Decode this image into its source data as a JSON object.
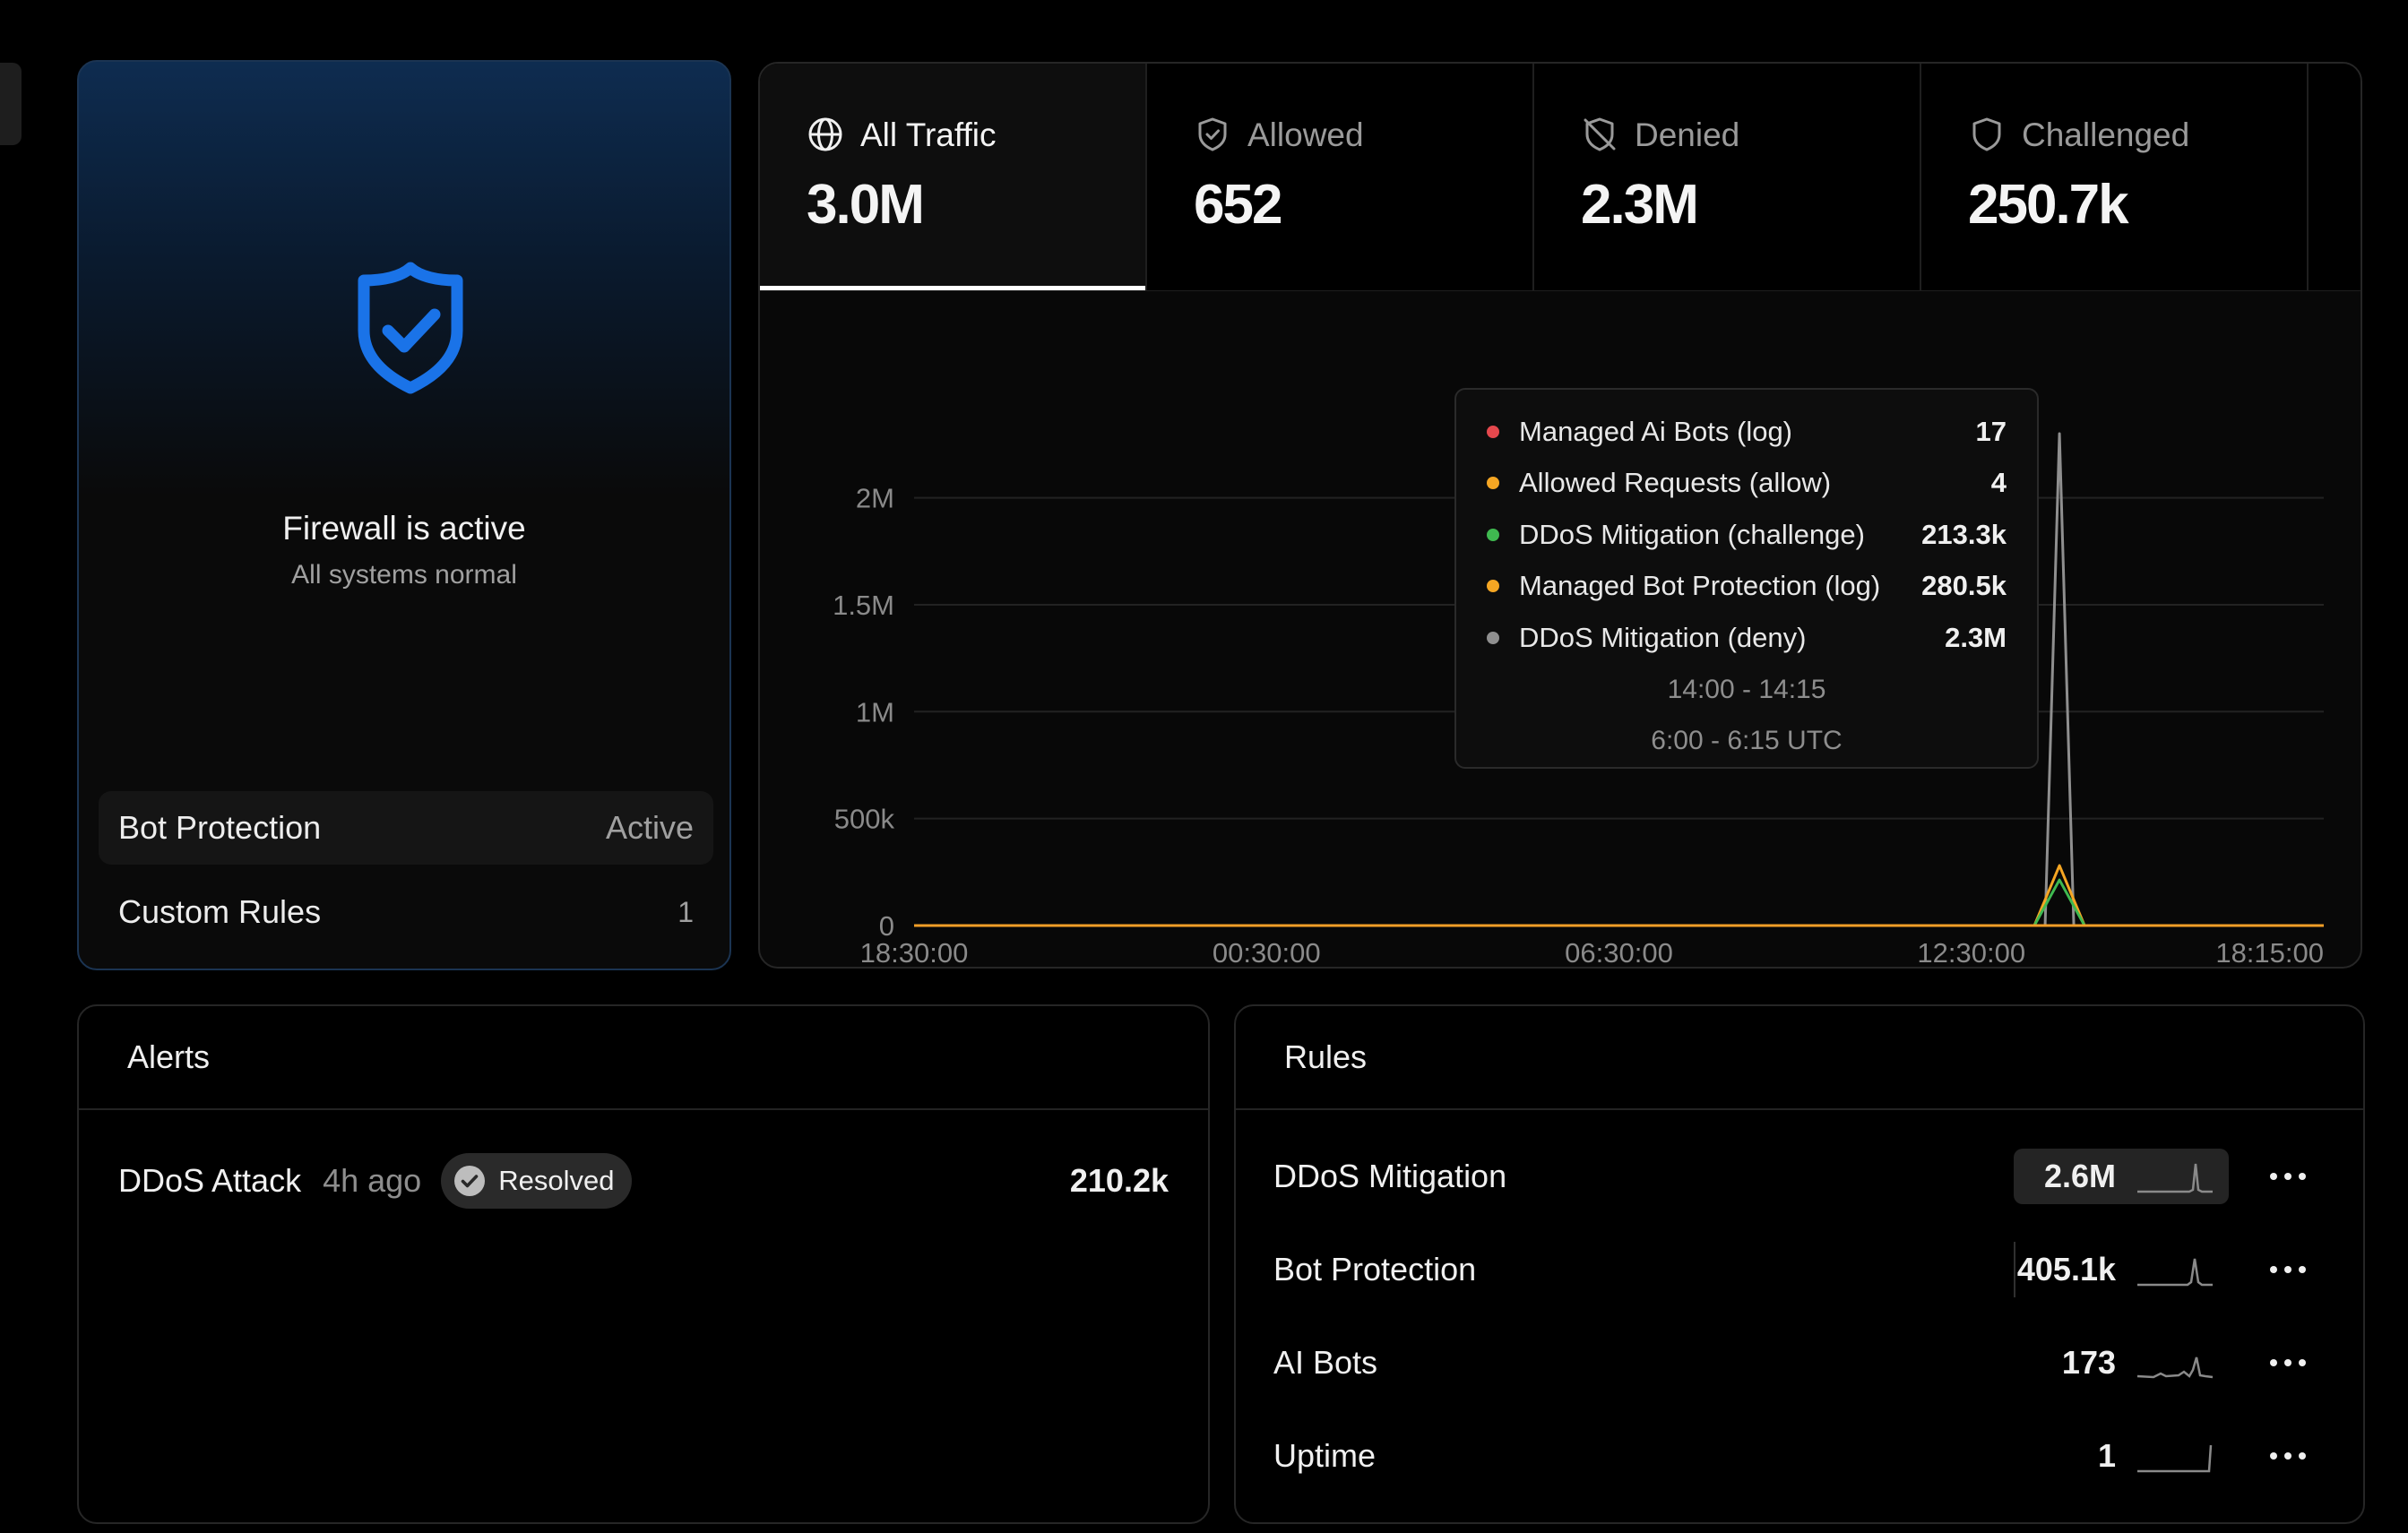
{
  "firewall": {
    "status_title": "Firewall is active",
    "status_subtitle": "All systems normal",
    "accent": "#1a73e8",
    "rows": [
      {
        "label": "Bot Protection",
        "value": "Active"
      },
      {
        "label": "Custom Rules",
        "value": "1"
      }
    ]
  },
  "traffic": {
    "tabs": [
      {
        "label": "All Traffic",
        "value": "3.0M",
        "icon": "globe-icon",
        "active": true
      },
      {
        "label": "Allowed",
        "value": "652",
        "icon": "shield-check-icon",
        "active": false
      },
      {
        "label": "Denied",
        "value": "2.3M",
        "icon": "shield-off-icon",
        "active": false
      },
      {
        "label": "Challenged",
        "value": "250.7k",
        "icon": "shield-icon",
        "active": false
      }
    ],
    "tooltip": {
      "items": [
        {
          "name": "Managed Ai Bots (log)",
          "value": "17",
          "color": "#e5484d"
        },
        {
          "name": "Allowed Requests (allow)",
          "value": "4",
          "color": "#f5a623"
        },
        {
          "name": "DDoS Mitigation (challenge)",
          "value": "213.3k",
          "color": "#3fb950"
        },
        {
          "name": "Managed Bot Protection (log)",
          "value": "280.5k",
          "color": "#f5a623"
        },
        {
          "name": "DDoS Mitigation (deny)",
          "value": "2.3M",
          "color": "#8f8f8f"
        }
      ],
      "time_local": "14:00 - 14:15",
      "time_utc": "6:00 - 6:15 UTC"
    }
  },
  "chart_data": {
    "type": "line",
    "x_tick_labels": [
      "18:30:00",
      "00:30:00",
      "06:30:00",
      "12:30:00",
      "18:15:00"
    ],
    "y_tick_labels": [
      "0",
      "500k",
      "1M",
      "1.5M",
      "2M"
    ],
    "y_ticks": [
      0,
      500000,
      1000000,
      1500000,
      2000000
    ],
    "ylim": [
      0,
      2300000
    ],
    "spike_x_fraction": 0.8125,
    "series": [
      {
        "name": "DDoS Mitigation (deny)",
        "color": "#8f8f8f",
        "peak": 2300000
      },
      {
        "name": "Managed Bot Protection (log)",
        "color": "#f5a623",
        "peak": 280500
      },
      {
        "name": "DDoS Mitigation (challenge)",
        "color": "#3fb950",
        "peak": 213300
      },
      {
        "name": "Managed Ai Bots (log)",
        "color": "#e5484d",
        "peak": 17
      },
      {
        "name": "Allowed Requests (allow)",
        "color": "#f5a623",
        "peak": 4
      }
    ],
    "grid": true
  },
  "alerts": {
    "title": "Alerts",
    "items": [
      {
        "name": "DDoS Attack",
        "ago": "4h ago",
        "status": "Resolved",
        "count": "210.2k"
      }
    ]
  },
  "rules": {
    "title": "Rules",
    "items": [
      {
        "name": "DDoS Mitigation",
        "value": "2.6M"
      },
      {
        "name": "Bot Protection",
        "value": "405.1k"
      },
      {
        "name": "AI Bots",
        "value": "173"
      },
      {
        "name": "Uptime",
        "value": "1"
      }
    ]
  }
}
